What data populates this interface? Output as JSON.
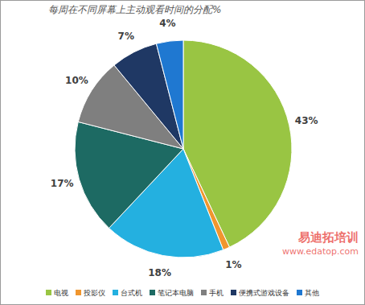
{
  "chart_data": {
    "type": "pie",
    "title": "每周在不同屏幕上主动观看时间的分配%",
    "categories": [
      "电视",
      "投影仪",
      "台式机",
      "笔记本电脑",
      "手机",
      "便携式游戏设备",
      "其他"
    ],
    "values": [
      43,
      1,
      18,
      17,
      10,
      7,
      4
    ],
    "value_labels": [
      "43%",
      "1%",
      "18%",
      "17%",
      "10%",
      "7%",
      "4%"
    ],
    "colors": [
      "#99c543",
      "#f0962e",
      "#24b0e0",
      "#1d6a63",
      "#7f7f7f",
      "#1f3864",
      "#1f78d1"
    ],
    "data_labels": true,
    "legend": "bottom",
    "annotations": [
      "易迪拓培训",
      "www.edatop.com"
    ]
  }
}
